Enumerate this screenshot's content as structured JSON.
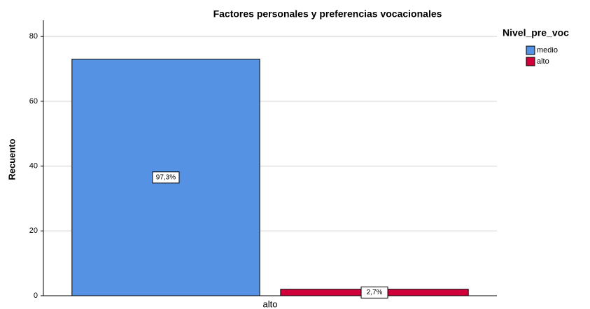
{
  "chart_data": {
    "type": "bar",
    "title": "Factores personales y preferencias vocacionales",
    "y_label": "Recuento",
    "categories": [
      "alto"
    ],
    "legend_title": "Nivel_pre_voc",
    "legend": "right",
    "series": [
      {
        "name": "medio",
        "color": "#5592e3",
        "values": [
          73
        ]
      },
      {
        "name": "alto",
        "color": "#d2003a",
        "values": [
          2
        ]
      }
    ],
    "annotations": [
      [
        "97,3%"
      ],
      [
        "2,7%"
      ]
    ],
    "ylim": [
      0,
      85
    ],
    "yticks": [
      0,
      20,
      40,
      60,
      80
    ],
    "grid": true
  }
}
